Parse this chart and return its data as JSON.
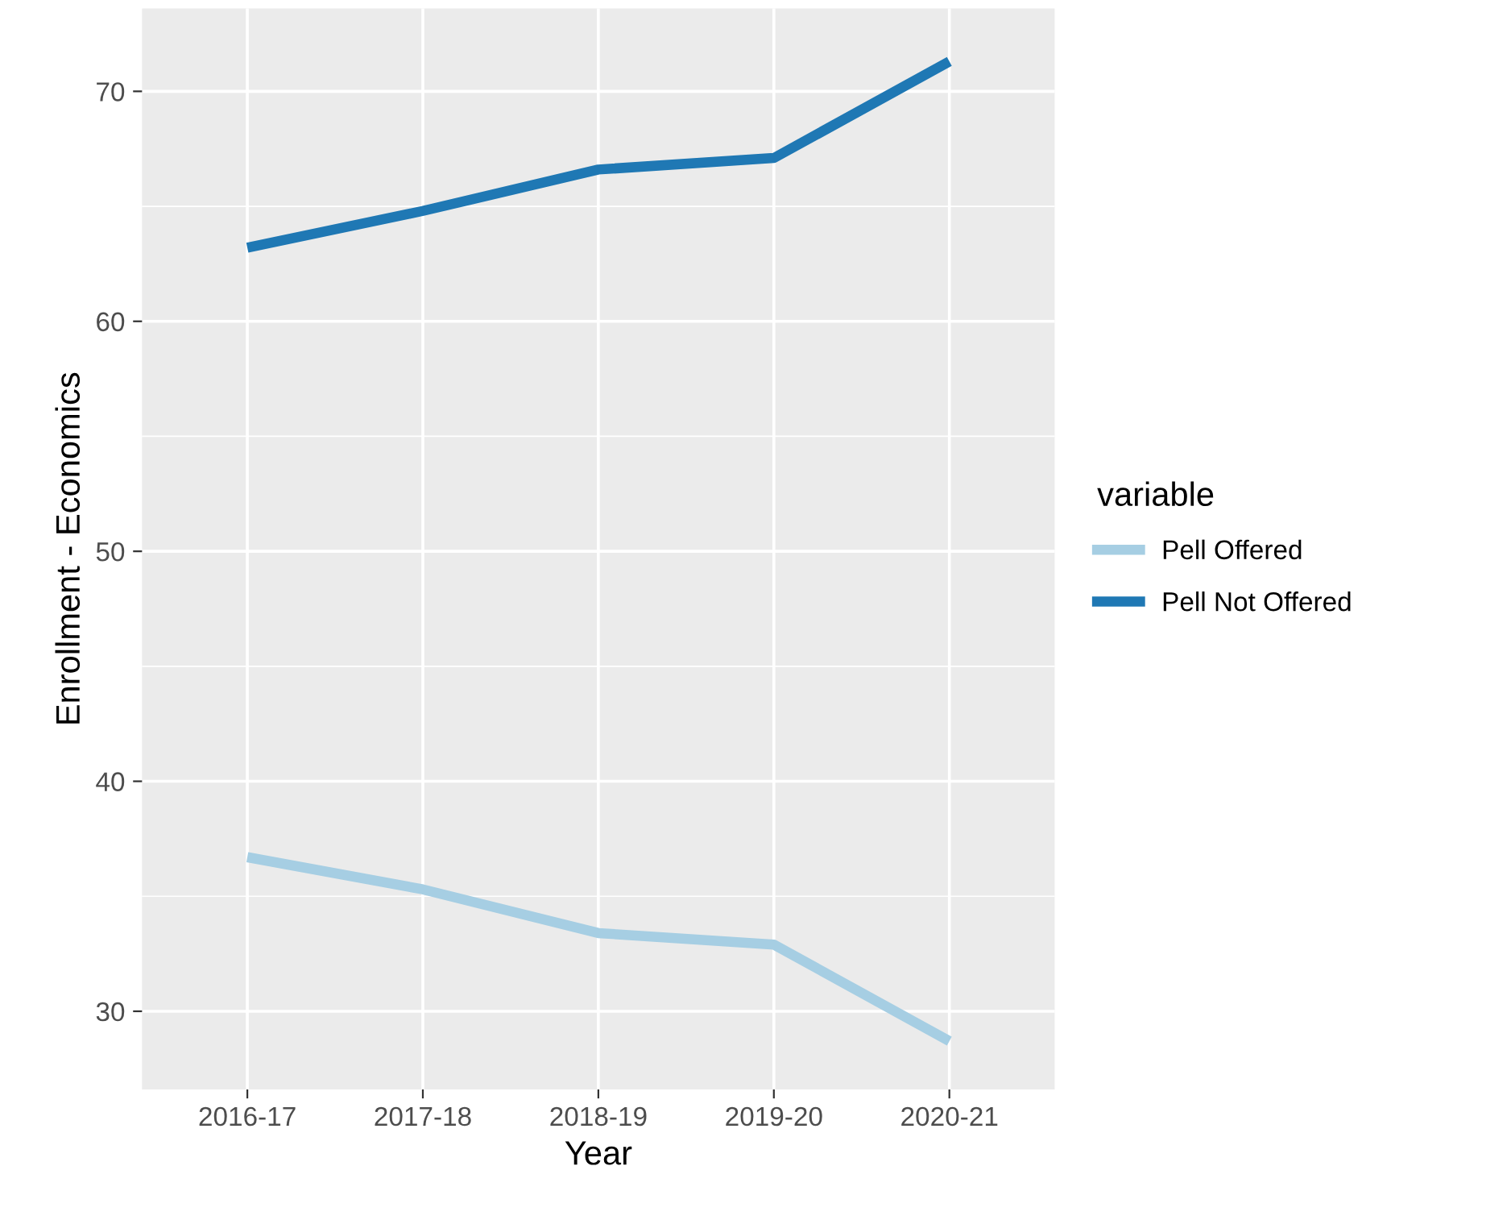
{
  "chart_data": {
    "type": "line",
    "xlabel": "Year",
    "ylabel": "Enrollment - Economics",
    "legend_title": "variable",
    "categories": [
      "2016-17",
      "2017-18",
      "2018-19",
      "2019-20",
      "2020-21"
    ],
    "series": [
      {
        "name": "Pell Offered",
        "color": "#a6cee3",
        "values": [
          36.7,
          35.3,
          33.4,
          32.9,
          28.7
        ]
      },
      {
        "name": "Pell Not Offered",
        "color": "#1f78b4",
        "values": [
          63.2,
          64.8,
          66.6,
          67.1,
          71.3
        ]
      }
    ],
    "ylim": [
      26.6,
      73.6
    ],
    "yticks": [
      30,
      {
        "value": 35,
        "label": null
      },
      40,
      {
        "value": 45,
        "label": null
      },
      50,
      {
        "value": 55,
        "label": null
      },
      60,
      {
        "value": 65,
        "label": null
      },
      70
    ],
    "grid": true,
    "legend": "right",
    "marker": "none",
    "line_style": "solid"
  }
}
